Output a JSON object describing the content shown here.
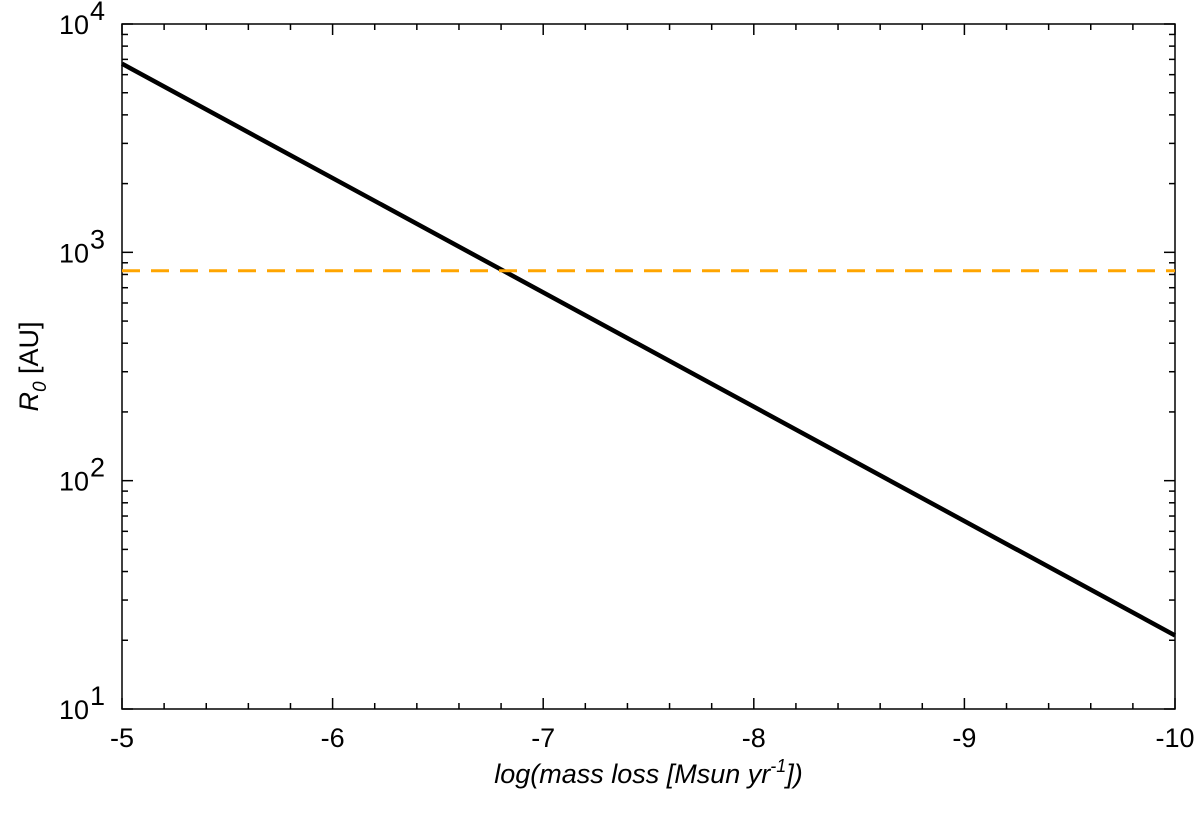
{
  "chart_data": {
    "type": "line",
    "xlabel": {
      "prefix": "log(mass loss [Msun yr",
      "sup": "-1",
      "suffix": "])"
    },
    "ylabel": {
      "main": "R",
      "sub": "0",
      "unit": " [AU]"
    },
    "xlim": [
      -5,
      -10
    ],
    "ylim": [
      10,
      10000
    ],
    "y_scale": "log",
    "x_ticks": [
      {
        "value": -5,
        "label": "-5"
      },
      {
        "value": -6,
        "label": "-6"
      },
      {
        "value": -7,
        "label": "-7"
      },
      {
        "value": -8,
        "label": "-8"
      },
      {
        "value": -9,
        "label": "-9"
      },
      {
        "value": -10,
        "label": "-10"
      }
    ],
    "y_ticks": [
      {
        "value": 10,
        "base": "10",
        "exp": "1"
      },
      {
        "value": 100,
        "base": "10",
        "exp": "2"
      },
      {
        "value": 1000,
        "base": "10",
        "exp": "3"
      },
      {
        "value": 10000,
        "base": "10",
        "exp": "4"
      }
    ],
    "grid": false,
    "series": [
      {
        "style": "solid",
        "color": "#000000",
        "x": [
          -5,
          -10
        ],
        "y": [
          6700,
          21
        ]
      },
      {
        "style": "dashed",
        "color": "#ffa500",
        "x": [
          -5,
          -10
        ],
        "y": [
          830,
          830
        ]
      }
    ]
  }
}
